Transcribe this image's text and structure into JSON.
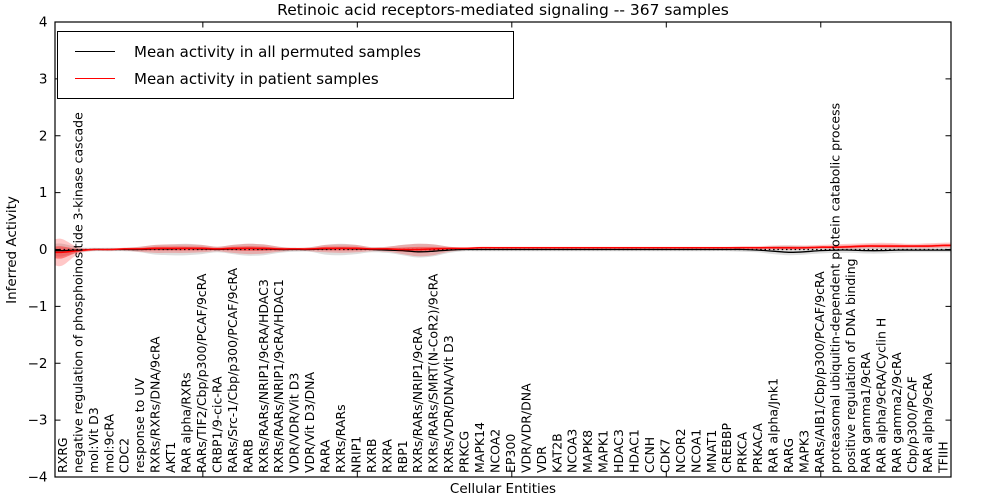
{
  "chart_data": {
    "type": "line",
    "title": "Retinoic acid receptors-mediated signaling -- 367 samples",
    "samples": 367,
    "xlabel": "Cellular Entities",
    "ylabel": "Inferred Activity",
    "ylim": [
      -4,
      4
    ],
    "grid": false,
    "yticks": [
      -4,
      -3,
      -2,
      -1,
      0,
      1,
      2,
      3,
      4
    ],
    "ytick_labels": [
      "−4",
      "−3",
      "−2",
      "−1",
      "0",
      "1",
      "2",
      "3",
      "4"
    ],
    "xtick_values": [
      10,
      20,
      30,
      40,
      50
    ],
    "zero_line": {
      "y": 0,
      "style": "dotted",
      "color": "#000000"
    },
    "legend": {
      "position": "upper left",
      "entries": [
        {
          "label": "Mean activity in all permuted samples",
          "color": "#000000"
        },
        {
          "label": "Mean activity in patient samples",
          "color": "#ff0000"
        }
      ]
    },
    "categories": [
      "RXRG",
      "negative regulation of phosphoinositide 3-kinase cascade",
      "mol:Vit D3",
      "mol:9cRA",
      "CDC2",
      "response to UV",
      "RXRs/RXRs/DNA/9cRA",
      "AKT1",
      "RAR alpha/RXRs",
      "RARs/TIF2/Cbp/p300/PCAF/9cRA",
      "CRBP1/9-cic-RA",
      "RARs/Src-1/Cbp/p300/PCAF/9cRA",
      "RARB",
      "RXRs/RARs/NRIP1/9cRA/HDAC3",
      "RXRs/RARs/NRIP1/9cRA/HDAC1",
      "VDR/VDR/Vit D3",
      "VDR/Vit D3/DNA",
      "RARA",
      "RXRs/RARs",
      "NRIP1",
      "RXRB",
      "RXRA",
      "RBP1",
      "RXRs/RARs/NRIP1/9cRA",
      "RXRs/RARs/SMRT(N-CoR2)/9cRA",
      "RXRs/VDR/DNA/Vit D3",
      "PRKCG",
      "MAPK14",
      "NCOA2",
      "EP300",
      "VDR/VDR/DNA",
      "VDR",
      "KAT2B",
      "NCOA3",
      "MAPK8",
      "MAPK1",
      "HDAC3",
      "HDAC1",
      "CCNH",
      "CDK7",
      "NCOR2",
      "NCOA1",
      "MNAT1",
      "CREBBP",
      "PRKCA",
      "PRKACA",
      "RAR alpha/Jnk1",
      "RARG",
      "MAPK3",
      "RARs/AIB1/Cbp/p300/PCAF/9cRA",
      "proteasomal ubiquitin-dependent protein catabolic process",
      "positive regulation of DNA binding",
      "RAR gamma1/9cRA",
      "RAR alpha/9cRA/Cyclin H",
      "RAR gamma2/9cRA",
      "Cbp/p300/PCAF",
      "RAR alpha/9cRA",
      "TFIIH"
    ],
    "series": [
      {
        "name": "Mean activity in all permuted samples",
        "color": "#000000",
        "band_color": "#999999",
        "values": [
          -0.02,
          -0.01,
          0,
          0,
          0,
          0,
          0.01,
          0.01,
          0.02,
          0.01,
          0,
          0.01,
          0.02,
          0.01,
          0,
          0,
          0,
          0.01,
          0.02,
          0.01,
          0,
          -0.01,
          -0.02,
          -0.04,
          -0.03,
          -0.01,
          0,
          0,
          0,
          0,
          0,
          0,
          0,
          0,
          0,
          0,
          0,
          0,
          0,
          0,
          0,
          0,
          0,
          0,
          0,
          -0.01,
          -0.03,
          -0.05,
          -0.04,
          -0.02,
          -0.01,
          -0.01,
          -0.02,
          -0.02,
          -0.01,
          -0.01,
          -0.01,
          -0.01
        ],
        "band_hi": [
          0.1,
          0.04,
          0.03,
          0.03,
          0.03,
          0.05,
          0.08,
          0.09,
          0.1,
          0.08,
          0.05,
          0.08,
          0.1,
          0.09,
          0.05,
          0.03,
          0.04,
          0.08,
          0.1,
          0.08,
          0.04,
          0.05,
          0.08,
          0.1,
          0.09,
          0.05,
          0.03,
          0.02,
          0.02,
          0.02,
          0.02,
          0.02,
          0.02,
          0.02,
          0.02,
          0.02,
          0.02,
          0.02,
          0.02,
          0.02,
          0.02,
          0.02,
          0.02,
          0.02,
          0.03,
          0.04,
          0.06,
          0.07,
          0.06,
          0.05,
          0.04,
          0.05,
          0.06,
          0.06,
          0.05,
          0.04,
          0.04,
          0.04
        ],
        "band_lo": [
          -0.12,
          -0.05,
          -0.03,
          -0.03,
          -0.03,
          -0.05,
          -0.09,
          -0.1,
          -0.1,
          -0.08,
          -0.05,
          -0.08,
          -0.11,
          -0.1,
          -0.06,
          -0.04,
          -0.04,
          -0.09,
          -0.1,
          -0.08,
          -0.05,
          -0.06,
          -0.1,
          -0.14,
          -0.12,
          -0.06,
          -0.03,
          -0.03,
          -0.03,
          -0.03,
          -0.03,
          -0.03,
          -0.03,
          -0.03,
          -0.03,
          -0.03,
          -0.03,
          -0.03,
          -0.03,
          -0.03,
          -0.03,
          -0.03,
          -0.03,
          -0.03,
          -0.04,
          -0.05,
          -0.08,
          -0.1,
          -0.09,
          -0.07,
          -0.06,
          -0.06,
          -0.07,
          -0.07,
          -0.06,
          -0.05,
          -0.05,
          -0.05
        ]
      },
      {
        "name": "Mean activity in patient samples",
        "color": "#ff0000",
        "band_color": "#ff0000",
        "values": [
          -0.05,
          -0.02,
          0,
          0,
          0.01,
          0.01,
          0.02,
          0.02,
          0.02,
          0.02,
          0.01,
          0.02,
          0.02,
          0.02,
          0.01,
          0.01,
          0.01,
          0.02,
          0.02,
          0.02,
          0.01,
          0.01,
          0,
          0,
          0.01,
          0.02,
          0.02,
          0.03,
          0.03,
          0.03,
          0.03,
          0.03,
          0.03,
          0.03,
          0.03,
          0.03,
          0.03,
          0.03,
          0.03,
          0.03,
          0.03,
          0.03,
          0.03,
          0.03,
          0.03,
          0.03,
          0.03,
          0.03,
          0.03,
          0.04,
          0.04,
          0.05,
          0.06,
          0.06,
          0.06,
          0.06,
          0.06,
          0.07
        ],
        "band_hi": [
          0.18,
          0.04,
          0.02,
          0.02,
          0.03,
          0.05,
          0.08,
          0.09,
          0.09,
          0.08,
          0.05,
          0.08,
          0.1,
          0.09,
          0.05,
          0.03,
          0.04,
          0.08,
          0.09,
          0.08,
          0.04,
          0.05,
          0.08,
          0.1,
          0.09,
          0.05,
          0.04,
          0.05,
          0.05,
          0.05,
          0.05,
          0.05,
          0.05,
          0.05,
          0.05,
          0.05,
          0.05,
          0.05,
          0.05,
          0.05,
          0.05,
          0.05,
          0.05,
          0.05,
          0.06,
          0.06,
          0.07,
          0.07,
          0.07,
          0.08,
          0.09,
          0.1,
          0.11,
          0.12,
          0.11,
          0.1,
          0.11,
          0.12
        ],
        "band_lo": [
          -0.28,
          -0.08,
          -0.02,
          -0.02,
          -0.02,
          -0.04,
          -0.06,
          -0.06,
          -0.06,
          -0.05,
          -0.03,
          -0.06,
          -0.08,
          -0.07,
          -0.04,
          -0.02,
          -0.03,
          -0.05,
          -0.06,
          -0.05,
          -0.03,
          -0.04,
          -0.08,
          -0.12,
          -0.1,
          -0.04,
          -0.01,
          0.01,
          0.01,
          0.01,
          0.01,
          0.01,
          0.01,
          0.01,
          0.01,
          0.01,
          0.01,
          0.01,
          0.01,
          0.01,
          0.01,
          0.01,
          0.01,
          0.01,
          0.01,
          0,
          0,
          -0.01,
          0,
          0.01,
          0.01,
          0.01,
          0.02,
          0.02,
          0.02,
          0.02,
          0.02,
          0.03
        ]
      }
    ]
  }
}
